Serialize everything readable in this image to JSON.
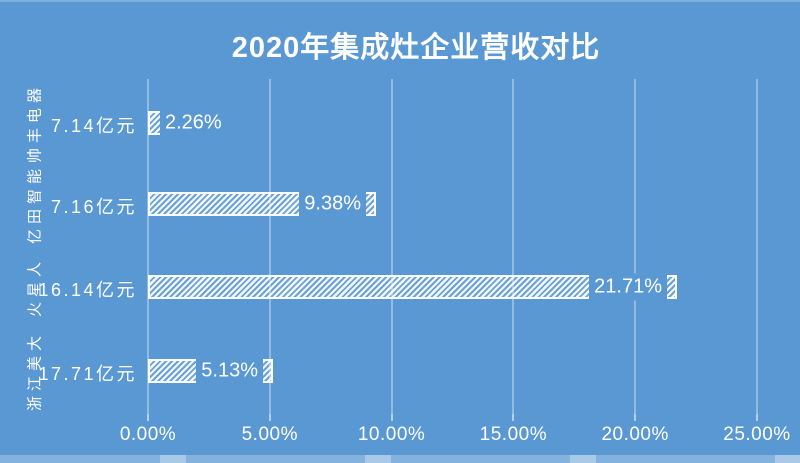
{
  "page": {
    "background_color": "#5a98d4",
    "text_color": "#ffffff"
  },
  "chart_data": {
    "type": "bar",
    "orientation": "horizontal",
    "title": "2020年集成灶企业营收对比",
    "categories": [
      "帅丰电器",
      "亿田智能",
      "火星人",
      "浙江美大"
    ],
    "revenue_labels": [
      "7.14亿元",
      "7.16亿元",
      "16.14亿元",
      "17.71亿元"
    ],
    "series": [
      {
        "name": "营收增速占比",
        "values": [
          2.26,
          9.38,
          21.71,
          5.13
        ]
      }
    ],
    "value_labels": [
      "2.26%",
      "9.38%",
      "21.71%",
      "5.13%"
    ],
    "x_ticks": [
      "0.00%",
      "5.00%",
      "10.00%",
      "15.00%",
      "20.00%",
      "25.00%"
    ],
    "xlim": [
      0,
      25
    ],
    "grid": true,
    "legend": "none",
    "bar_style": "white-diagonal-hatch",
    "colors": {
      "background": "#5a98d4",
      "bar_hatch": "#ffffff",
      "gridline": "rgba(255,255,255,0.34)",
      "text": "#ffffff"
    }
  }
}
